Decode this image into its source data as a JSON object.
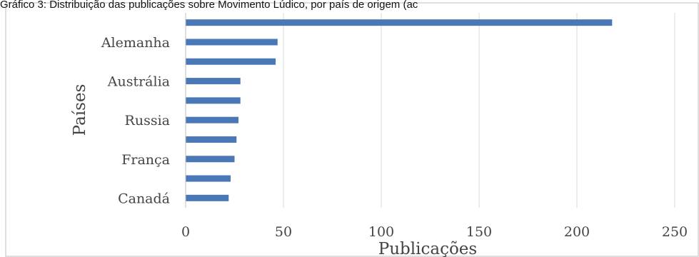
{
  "chart_data": {
    "type": "bar",
    "orientation": "horizontal",
    "title": "Gráfico 3: Distribuição das publicações sobre Movimento Lúdico, por país de origem (ac",
    "xlabel": "Publicações",
    "ylabel": "Países",
    "xlim": [
      0,
      250
    ],
    "xticks": [
      0,
      50,
      100,
      150,
      200,
      250
    ],
    "grid": true,
    "legend": "none",
    "bar_color": "#4a78b6",
    "categories": [
      "",
      "Alemanha",
      "",
      "Austrália",
      "",
      "Russia",
      "",
      "França",
      "",
      "Canadá"
    ],
    "values": [
      218,
      47,
      46,
      28,
      28,
      27,
      26,
      25,
      23,
      22
    ]
  }
}
